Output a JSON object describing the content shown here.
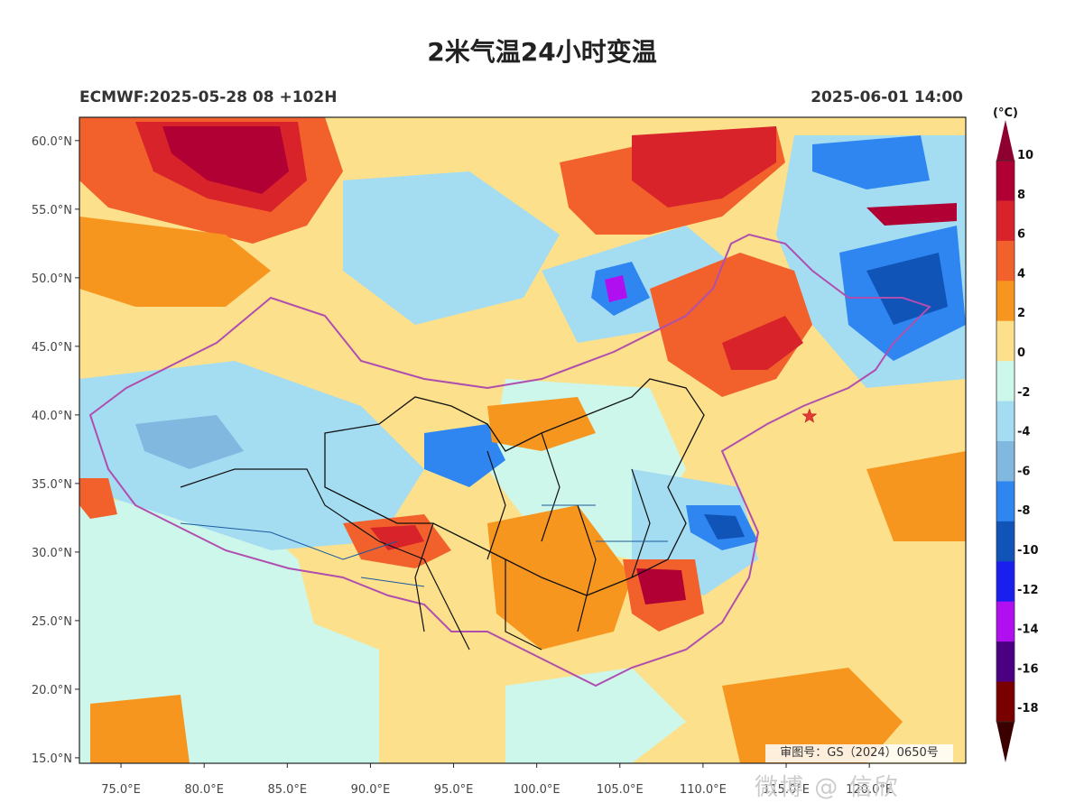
{
  "title": "2米气温24小时变温",
  "subtitle_left": "ECMWF:2025-05-28 08 +102H",
  "subtitle_right": "2025-06-01 14:00",
  "approval_number": "审图号：GS（2024）0650号",
  "watermark": "微博 @ 信欣",
  "map": {
    "lat_ticks": [
      "60.0°N",
      "55.0°N",
      "50.0°N",
      "45.0°N",
      "40.0°N",
      "35.0°N",
      "30.0°N",
      "25.0°N",
      "20.0°N",
      "15.0°N"
    ],
    "lon_ticks": [
      "75.0°E",
      "80.0°E",
      "85.0°E",
      "90.0°E",
      "95.0°E",
      "100.0°E",
      "105.0°E",
      "110.0°E",
      "115.0°E",
      "120.0°E"
    ],
    "lon_range": [
      72.5,
      125.8
    ],
    "lat_range": [
      14.6,
      61.7
    ],
    "marker": {
      "name": "star",
      "lon": 116.4,
      "lat": 39.9,
      "color": "#e53935"
    }
  },
  "colorbar": {
    "unit": "(°C)",
    "labels": [
      "10",
      "8",
      "6",
      "4",
      "2",
      "0",
      "-2",
      "-4",
      "-6",
      "-8",
      "-10",
      "-12",
      "-14",
      "-16",
      "-18"
    ],
    "colors": [
      "#b00034",
      "#d8232a",
      "#f2612c",
      "#f7961f",
      "#fde08b",
      "#cdf7ea",
      "#a4dcf2",
      "#80b8e0",
      "#2f86f0",
      "#1054b8",
      "#1a1ff0",
      "#b00ff0",
      "#4b0082",
      "#7a0000"
    ],
    "top_color": "#8e0030",
    "bottom_color": "#3a0000"
  }
}
